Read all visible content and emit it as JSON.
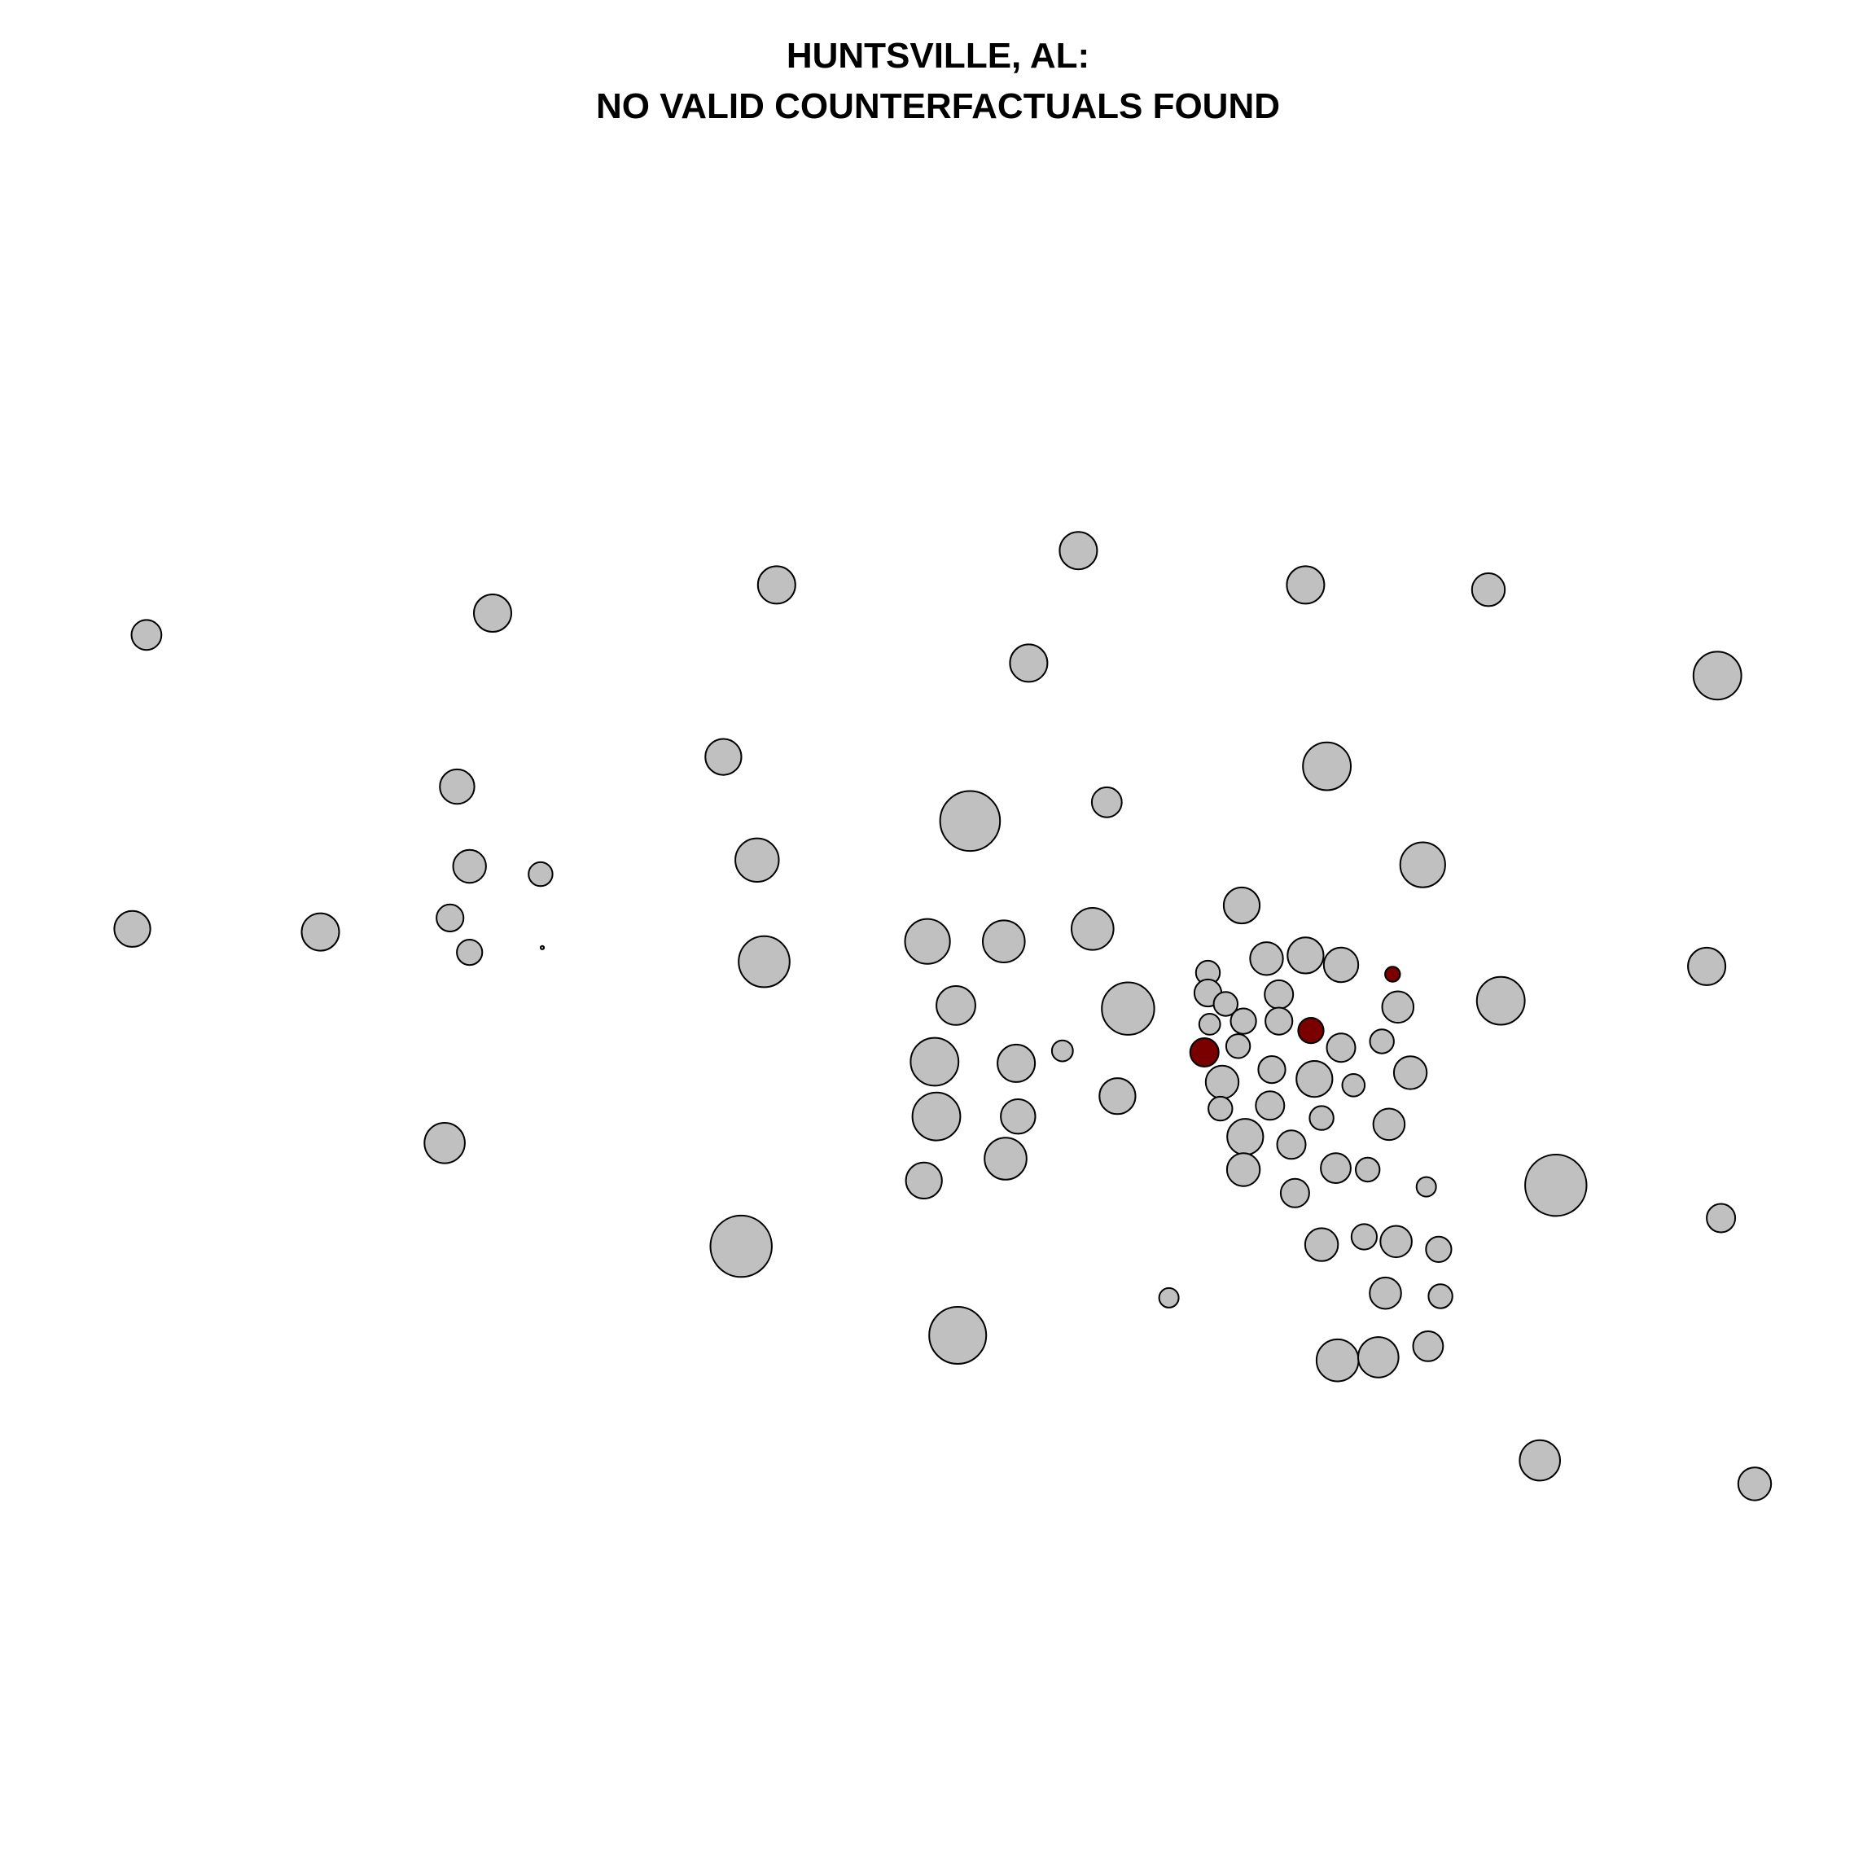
{
  "chart_data": {
    "type": "scatter",
    "title": [
      "HUNTSVILLE, AL:",
      "NO VALID COUNTERFACTUALS FOUND"
    ],
    "xlabel": "",
    "ylabel": "",
    "axes_shown": false,
    "grid": false,
    "legend": "none",
    "colors": {
      "default": "#c0c0c0",
      "highlight": "#7a0000",
      "stroke": "#000000"
    },
    "xlim": [
      0,
      1000
    ],
    "ylim": [
      0,
      1000
    ],
    "series": [
      {
        "points": [
          {
            "x": 55,
            "y": 698,
            "size": 2
          },
          {
            "x": 250,
            "y": 712,
            "size": 2.5
          },
          {
            "x": 410,
            "y": 730,
            "size": 2.5
          },
          {
            "x": 580,
            "y": 752,
            "size": 2.5
          },
          {
            "x": 708,
            "y": 730,
            "size": 2.5
          },
          {
            "x": 811,
            "y": 727,
            "size": 2.2
          },
          {
            "x": 940,
            "y": 672,
            "size": 3.2
          },
          {
            "x": 552,
            "y": 680,
            "size": 2.5
          },
          {
            "x": 720,
            "y": 614,
            "size": 3.2
          },
          {
            "x": 380,
            "y": 620,
            "size": 2.4
          },
          {
            "x": 230,
            "y": 601,
            "size": 2.3
          },
          {
            "x": 596,
            "y": 591,
            "size": 2
          },
          {
            "x": 519,
            "y": 579,
            "size": 4
          },
          {
            "x": 399,
            "y": 554,
            "size": 2.9
          },
          {
            "x": 237,
            "y": 550,
            "size": 2.2
          },
          {
            "x": 277,
            "y": 545,
            "size": 1.6
          },
          {
            "x": 774,
            "y": 551,
            "size": 3
          },
          {
            "x": 47,
            "y": 510,
            "size": 2.4
          },
          {
            "x": 153,
            "y": 508,
            "size": 2.5
          },
          {
            "x": 226,
            "y": 517,
            "size": 1.8
          },
          {
            "x": 237,
            "y": 495,
            "size": 1.7
          },
          {
            "x": 278,
            "y": 498,
            "size": 0.2330000000000001
          },
          {
            "x": 403,
            "y": 489,
            "size": 3.4
          },
          {
            "x": 495,
            "y": 502,
            "size": 3
          },
          {
            "x": 538,
            "y": 502,
            "size": 2.8
          },
          {
            "x": 588,
            "y": 510,
            "size": 2.8
          },
          {
            "x": 672,
            "y": 525,
            "size": 2.4
          },
          {
            "x": 934,
            "y": 486,
            "size": 2.5
          },
          {
            "x": 686,
            "y": 491,
            "size": 2.2
          },
          {
            "x": 708,
            "y": 493,
            "size": 2.4
          },
          {
            "x": 728,
            "y": 487,
            "size": 2.3
          },
          {
            "x": 653,
            "y": 482,
            "size": 1.6
          },
          {
            "x": 653,
            "y": 469,
            "size": 1.8
          },
          {
            "x": 663,
            "y": 462,
            "size": 1.6
          },
          {
            "x": 693,
            "y": 468,
            "size": 1.9
          },
          {
            "x": 511,
            "y": 461,
            "size": 2.6
          },
          {
            "x": 608,
            "y": 459,
            "size": 3.5
          },
          {
            "x": 760,
            "y": 460,
            "size": 2.1
          },
          {
            "x": 818,
            "y": 464,
            "size": 3.2
          },
          {
            "x": 654,
            "y": 449,
            "size": 1.4
          },
          {
            "x": 673,
            "y": 451,
            "size": 1.7
          },
          {
            "x": 693,
            "y": 451,
            "size": 1.8
          },
          {
            "x": 571,
            "y": 432,
            "size": 1.4
          },
          {
            "x": 670,
            "y": 435,
            "size": 1.6
          },
          {
            "x": 728,
            "y": 434,
            "size": 1.9
          },
          {
            "x": 751,
            "y": 438,
            "size": 1.6
          },
          {
            "x": 499,
            "y": 425,
            "size": 3.2
          },
          {
            "x": 545,
            "y": 424,
            "size": 2.5
          },
          {
            "x": 661,
            "y": 412,
            "size": 2.2
          },
          {
            "x": 689,
            "y": 420,
            "size": 1.8
          },
          {
            "x": 713,
            "y": 414,
            "size": 2.4
          },
          {
            "x": 735,
            "y": 410,
            "size": 1.5
          },
          {
            "x": 767,
            "y": 418,
            "size": 2.2
          },
          {
            "x": 602,
            "y": 403,
            "size": 2.4
          },
          {
            "x": 660,
            "y": 395,
            "size": 1.6
          },
          {
            "x": 688,
            "y": 397,
            "size": 1.9
          },
          {
            "x": 500,
            "y": 390,
            "size": 3.2
          },
          {
            "x": 546,
            "y": 390,
            "size": 2.3
          },
          {
            "x": 717,
            "y": 389,
            "size": 1.6
          },
          {
            "x": 755,
            "y": 385,
            "size": 2.1
          },
          {
            "x": 223,
            "y": 373,
            "size": 2.7
          },
          {
            "x": 674,
            "y": 377,
            "size": 2.4
          },
          {
            "x": 700,
            "y": 372,
            "size": 1.9
          },
          {
            "x": 539,
            "y": 363,
            "size": 2.8
          },
          {
            "x": 673,
            "y": 356,
            "size": 2.2
          },
          {
            "x": 725,
            "y": 357,
            "size": 2
          },
          {
            "x": 743,
            "y": 356,
            "size": 1.6
          },
          {
            "x": 493,
            "y": 349,
            "size": 2.4
          },
          {
            "x": 702,
            "y": 341,
            "size": 1.9
          },
          {
            "x": 776,
            "y": 345,
            "size": 1.3
          },
          {
            "x": 849,
            "y": 346,
            "size": 4.1
          },
          {
            "x": 942,
            "y": 325,
            "size": 1.9
          },
          {
            "x": 390,
            "y": 307,
            "size": 4.1
          },
          {
            "x": 717,
            "y": 308,
            "size": 2.2
          },
          {
            "x": 741,
            "y": 313,
            "size": 1.7
          },
          {
            "x": 759,
            "y": 310,
            "size": 2.1
          },
          {
            "x": 783,
            "y": 305,
            "size": 1.7
          },
          {
            "x": 631,
            "y": 274,
            "size": 1.3
          },
          {
            "x": 753,
            "y": 277,
            "size": 2.1
          },
          {
            "x": 784,
            "y": 275,
            "size": 1.6
          },
          {
            "x": 512,
            "y": 250,
            "size": 3.8
          },
          {
            "x": 726,
            "y": 234,
            "size": 2.8
          },
          {
            "x": 749,
            "y": 236,
            "size": 2.7
          },
          {
            "x": 777,
            "y": 243,
            "size": 2
          },
          {
            "x": 840,
            "y": 170,
            "size": 2.7
          },
          {
            "x": 961,
            "y": 155,
            "size": 2.2
          }
        ]
      },
      {
        "highlight": true,
        "points": [
          {
            "x": 651,
            "y": 431,
            "size": 1.9
          },
          {
            "x": 711,
            "y": 445,
            "size": 1.7
          },
          {
            "x": 757,
            "y": 481,
            "size": 1
          }
        ]
      }
    ]
  }
}
